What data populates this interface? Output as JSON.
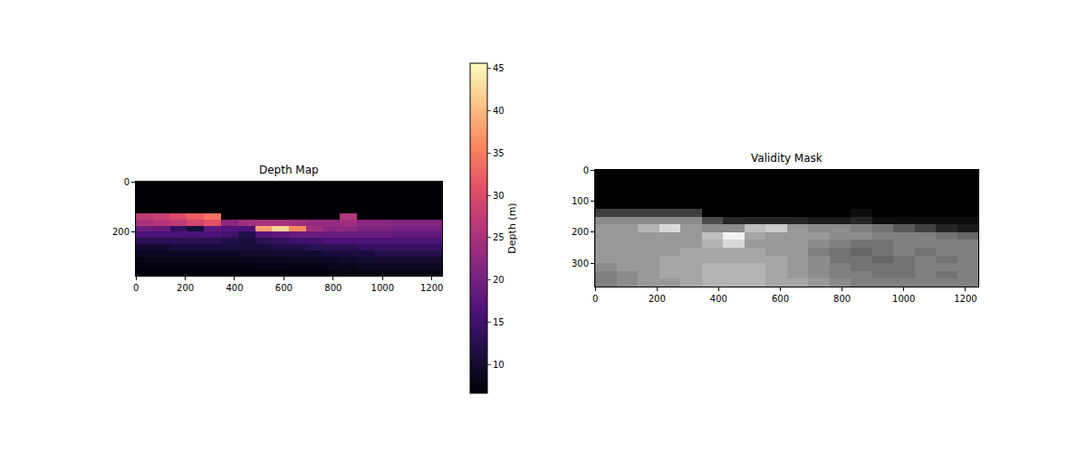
{
  "chart_data": [
    {
      "type": "heatmap",
      "title": "Depth Map",
      "color": "magma",
      "x": [
        34.5,
        103.5,
        172.5,
        241.5,
        310.5,
        379.5,
        448.5,
        517.5,
        586.5,
        655.5,
        724.5,
        793.5,
        862.5,
        931.5,
        1000.5,
        1069.5,
        1138.5,
        1207.5
      ],
      "y": [
        12,
        37,
        62,
        87,
        112,
        137,
        162,
        187,
        212,
        237,
        262,
        287,
        312,
        337,
        362
      ],
      "z": [
        [
          null,
          null,
          null,
          null,
          null,
          null,
          null,
          null,
          null,
          null,
          null,
          null,
          null,
          null,
          null,
          null,
          null,
          null
        ],
        [
          null,
          null,
          null,
          null,
          null,
          null,
          null,
          null,
          null,
          null,
          null,
          null,
          null,
          null,
          null,
          null,
          null,
          null
        ],
        [
          null,
          null,
          null,
          null,
          null,
          null,
          null,
          null,
          null,
          null,
          null,
          null,
          null,
          null,
          null,
          null,
          null,
          null
        ],
        [
          null,
          null,
          null,
          null,
          null,
          null,
          null,
          null,
          null,
          null,
          null,
          null,
          null,
          null,
          null,
          null,
          null,
          null
        ],
        [
          null,
          null,
          null,
          null,
          null,
          null,
          null,
          null,
          null,
          null,
          null,
          null,
          null,
          null,
          null,
          null,
          null,
          null
        ],
        [
          27,
          28,
          30,
          32,
          34,
          null,
          null,
          null,
          null,
          null,
          null,
          null,
          26,
          null,
          null,
          null,
          null,
          null
        ],
        [
          25,
          26,
          27,
          29,
          31,
          22,
          24,
          25,
          25,
          24,
          23,
          23,
          24,
          22,
          22,
          21,
          21,
          21
        ],
        [
          19,
          19,
          14,
          11,
          18,
          17,
          16,
          38,
          42,
          36,
          24,
          22,
          22,
          21,
          21,
          20,
          20,
          20
        ],
        [
          16,
          16,
          16,
          16,
          16,
          15,
          12,
          17,
          18,
          19,
          19,
          19,
          19,
          19,
          19,
          18,
          18,
          18
        ],
        [
          13,
          13,
          13,
          13,
          13,
          12,
          11,
          13,
          14,
          15,
          15,
          16,
          16,
          16,
          16,
          16,
          16,
          16
        ],
        [
          10,
          10,
          11,
          11,
          11,
          11,
          11,
          11,
          12,
          12,
          13,
          13,
          13,
          14,
          14,
          14,
          14,
          14
        ],
        [
          9,
          9,
          9,
          9,
          9,
          9,
          9.5,
          9.5,
          10,
          10,
          10,
          11,
          11,
          11,
          12,
          12,
          12,
          12
        ],
        [
          8,
          8,
          8,
          8,
          8,
          8,
          8.5,
          8.5,
          8.5,
          9,
          9,
          9,
          9.5,
          10,
          10,
          10,
          10,
          10
        ],
        [
          7.5,
          7.5,
          7.5,
          7.5,
          7.5,
          7.5,
          7.5,
          8,
          8,
          8,
          8,
          8.5,
          8.5,
          9,
          9,
          9,
          9,
          9
        ],
        [
          7,
          7,
          7,
          7,
          7,
          7,
          7,
          7,
          7,
          7.5,
          7.5,
          7.5,
          8,
          8,
          8,
          8,
          8,
          8
        ]
      ],
      "xlim": [
        -0.5,
        1241.5
      ],
      "ylim": [
        374.5,
        -0.5
      ],
      "xticks": [
        0,
        200,
        400,
        600,
        800,
        1000,
        1200
      ],
      "yticks": [
        0,
        200
      ],
      "colorbar": {
        "label": "Depth (m)",
        "range": [
          6.6,
          45.6
        ],
        "ticks": [
          10,
          15,
          20,
          25,
          30,
          35,
          40,
          45
        ]
      }
    },
    {
      "type": "heatmap",
      "title": "Validity Mask",
      "color": "gray",
      "x": [
        34.5,
        103.5,
        172.5,
        241.5,
        310.5,
        379.5,
        448.5,
        517.5,
        586.5,
        655.5,
        724.5,
        793.5,
        862.5,
        931.5,
        1000.5,
        1069.5,
        1138.5,
        1207.5
      ],
      "y": [
        12,
        37,
        62,
        87,
        112,
        137,
        162,
        187,
        212,
        237,
        262,
        287,
        312,
        337,
        362
      ],
      "z": [
        [
          0,
          0,
          0,
          0,
          0,
          0,
          0,
          0,
          0,
          0,
          0,
          0,
          0,
          0,
          0,
          0,
          0,
          0
        ],
        [
          0,
          0,
          0,
          0,
          0,
          0,
          0,
          0,
          0,
          0,
          0,
          0,
          0,
          0,
          0,
          0,
          0,
          0
        ],
        [
          0,
          0,
          0,
          0,
          0,
          0,
          0,
          0,
          0,
          0,
          0,
          0,
          0,
          0,
          0,
          0,
          0,
          0
        ],
        [
          0,
          0,
          0,
          0,
          0,
          0,
          0,
          0,
          0,
          0,
          0,
          0,
          0,
          0,
          0,
          0,
          0,
          0
        ],
        [
          0,
          0,
          0,
          0,
          0,
          0,
          0,
          0,
          0,
          0,
          0,
          0,
          0,
          0,
          0,
          0,
          0,
          0
        ],
        [
          0.25,
          0.25,
          0.25,
          0.25,
          0.25,
          0,
          0,
          0,
          0,
          0,
          0,
          0,
          0.05,
          0,
          0,
          0,
          0,
          0
        ],
        [
          0.55,
          0.55,
          0.55,
          0.55,
          0.55,
          0.3,
          0.15,
          0.15,
          0.15,
          0.15,
          0.1,
          0.1,
          0.15,
          0.05,
          0.05,
          0.05,
          0.05,
          0.05
        ],
        [
          0.6,
          0.6,
          0.7,
          0.85,
          0.6,
          0.55,
          0.55,
          0.75,
          0.8,
          0.6,
          0.55,
          0.55,
          0.5,
          0.45,
          0.35,
          0.25,
          0.15,
          0.1
        ],
        [
          0.6,
          0.6,
          0.6,
          0.6,
          0.6,
          0.75,
          0.95,
          0.65,
          0.6,
          0.6,
          0.6,
          0.55,
          0.55,
          0.5,
          0.5,
          0.5,
          0.45,
          0.4
        ],
        [
          0.6,
          0.6,
          0.6,
          0.6,
          0.6,
          0.7,
          0.85,
          0.6,
          0.6,
          0.6,
          0.55,
          0.5,
          0.45,
          0.45,
          0.5,
          0.5,
          0.5,
          0.5
        ],
        [
          0.6,
          0.6,
          0.6,
          0.6,
          0.65,
          0.65,
          0.65,
          0.65,
          0.6,
          0.6,
          0.5,
          0.45,
          0.4,
          0.45,
          0.5,
          0.45,
          0.5,
          0.5
        ],
        [
          0.6,
          0.6,
          0.6,
          0.65,
          0.65,
          0.65,
          0.65,
          0.65,
          0.65,
          0.6,
          0.55,
          0.45,
          0.45,
          0.4,
          0.45,
          0.5,
          0.45,
          0.5
        ],
        [
          0.55,
          0.6,
          0.6,
          0.65,
          0.65,
          0.7,
          0.7,
          0.7,
          0.65,
          0.6,
          0.55,
          0.5,
          0.45,
          0.45,
          0.45,
          0.5,
          0.5,
          0.5
        ],
        [
          0.5,
          0.55,
          0.6,
          0.65,
          0.65,
          0.7,
          0.7,
          0.7,
          0.65,
          0.6,
          0.55,
          0.5,
          0.5,
          0.45,
          0.45,
          0.5,
          0.45,
          0.5
        ],
        [
          0.5,
          0.55,
          0.6,
          0.6,
          0.65,
          0.7,
          0.7,
          0.7,
          0.65,
          0.65,
          0.6,
          0.55,
          0.5,
          0.5,
          0.5,
          0.5,
          0.5,
          0.5
        ]
      ],
      "zlim": [
        0,
        1
      ],
      "xlim": [
        -0.5,
        1241.5
      ],
      "ylim": [
        374.5,
        -0.5
      ],
      "xticks": [
        0,
        200,
        400,
        600,
        800,
        1000,
        1200
      ],
      "yticks": [
        0,
        100,
        200,
        300
      ]
    }
  ]
}
